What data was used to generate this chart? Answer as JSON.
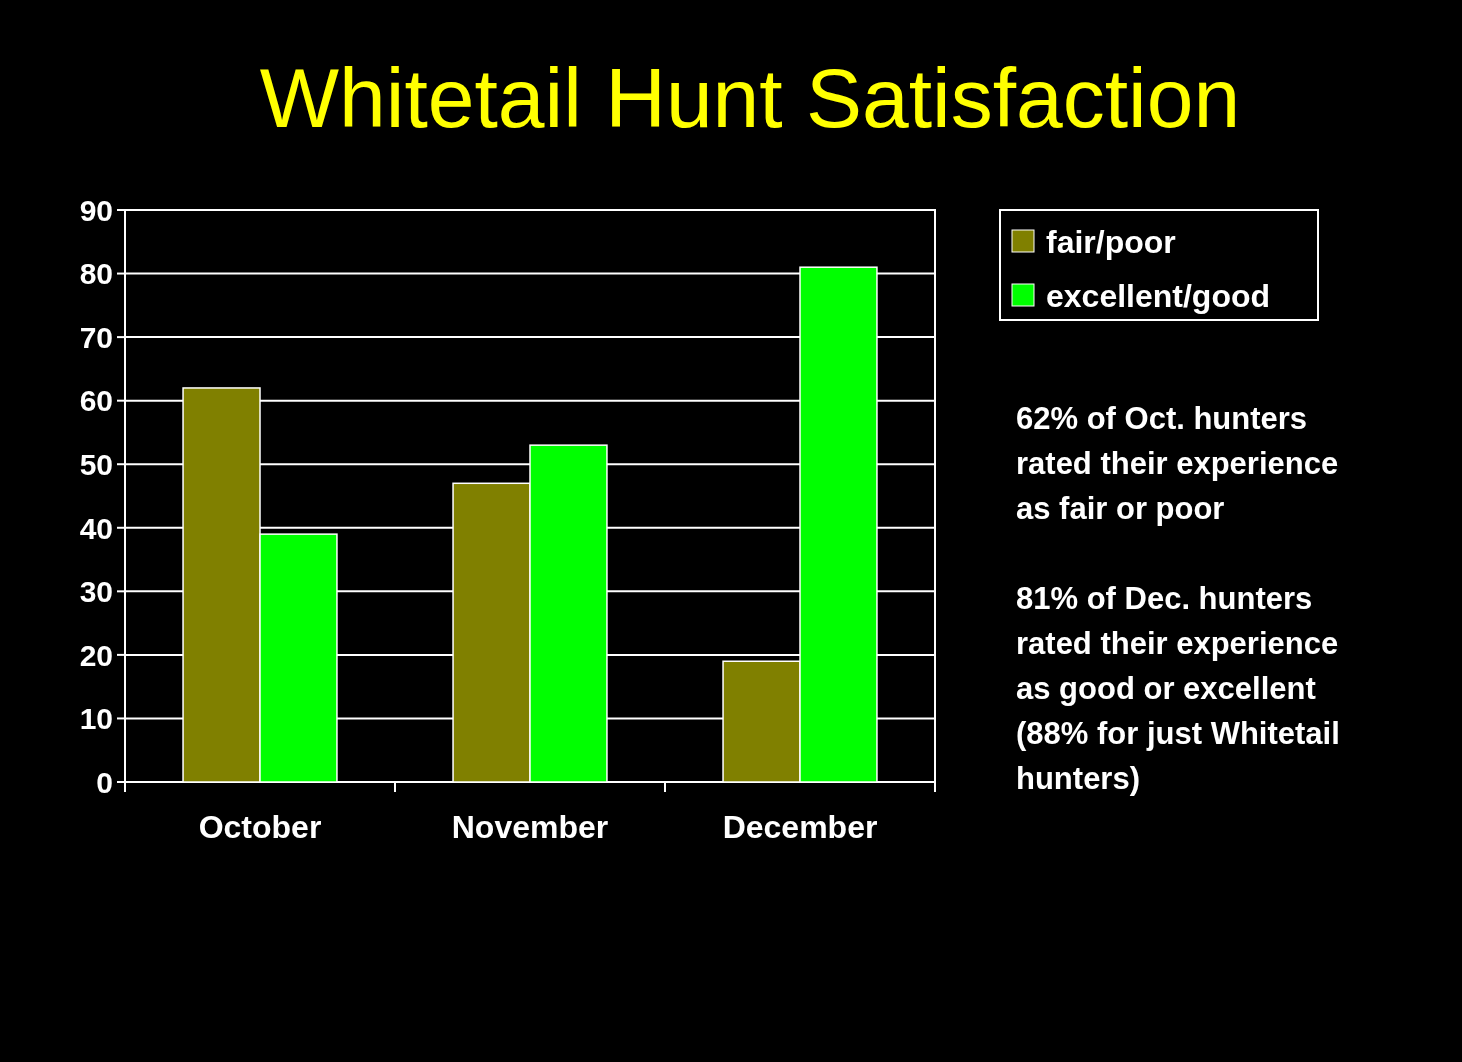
{
  "chart_data": {
    "type": "bar",
    "title": "Whitetail Hunt Satisfaction",
    "categories": [
      "October",
      "November",
      "December"
    ],
    "series": [
      {
        "name": "fair/poor",
        "color": "#808000",
        "values": [
          62,
          47,
          19
        ]
      },
      {
        "name": "excellent/good",
        "color": "#00ff00",
        "values": [
          39,
          53,
          81
        ]
      }
    ],
    "ylim": [
      0,
      90
    ],
    "yticks": [
      0,
      10,
      20,
      30,
      40,
      50,
      60,
      70,
      80,
      90
    ],
    "grid": "y",
    "legend": "top right",
    "annotations": [
      "62% of Oct. hunters\nrated their experience\nas fair or poor",
      "81% of Dec. hunters\nrated their experience\nas good or excellent\n(88% for just Whitetail\nhunters)"
    ]
  }
}
